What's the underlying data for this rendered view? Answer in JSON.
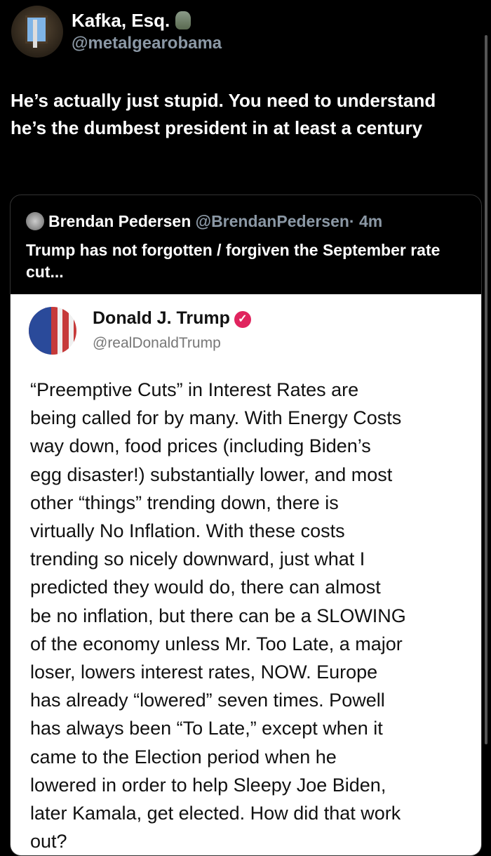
{
  "author": {
    "name": "Kafka, Esq.",
    "handle": "@metalgearobama",
    "emoji_icon": "troll-figure-emoji"
  },
  "tweet_text": "He’s actually just stupid. You need to understand he’s the dumbest president in at least a century",
  "quote": {
    "name": "Brendan Pedersen",
    "handle": "@BrendanPedersen",
    "time": "· 4m",
    "text": "Trump has not forgotten / forgiven the September rate cut...",
    "image": {
      "name": "Donald J. Trump",
      "handle": "@realDonaldTrump",
      "verified_color": "#e0245e",
      "lines": [
        "“Preemptive Cuts” in Interest Rates are",
        "being called for by many. With Energy Costs",
        "way down, food prices (including Biden’s",
        "egg disaster!) substantially lower, and most",
        "other “things” trending down, there is",
        "virtually No Inflation. With these costs",
        "trending so nicely downward, just what I",
        "predicted they would do, there can almost",
        "be no inflation, but there can be a SLOWING",
        "of the economy unless Mr. Too Late, a major",
        "loser, lowers interest rates, NOW. Europe",
        "has already “lowered” seven times. Powell",
        "has always been “To Late,” except when it",
        "came to the Election period when he",
        "lowered in order to help Sleepy Joe Biden,",
        "later Kamala, get elected. How did that work",
        "out?"
      ]
    }
  }
}
